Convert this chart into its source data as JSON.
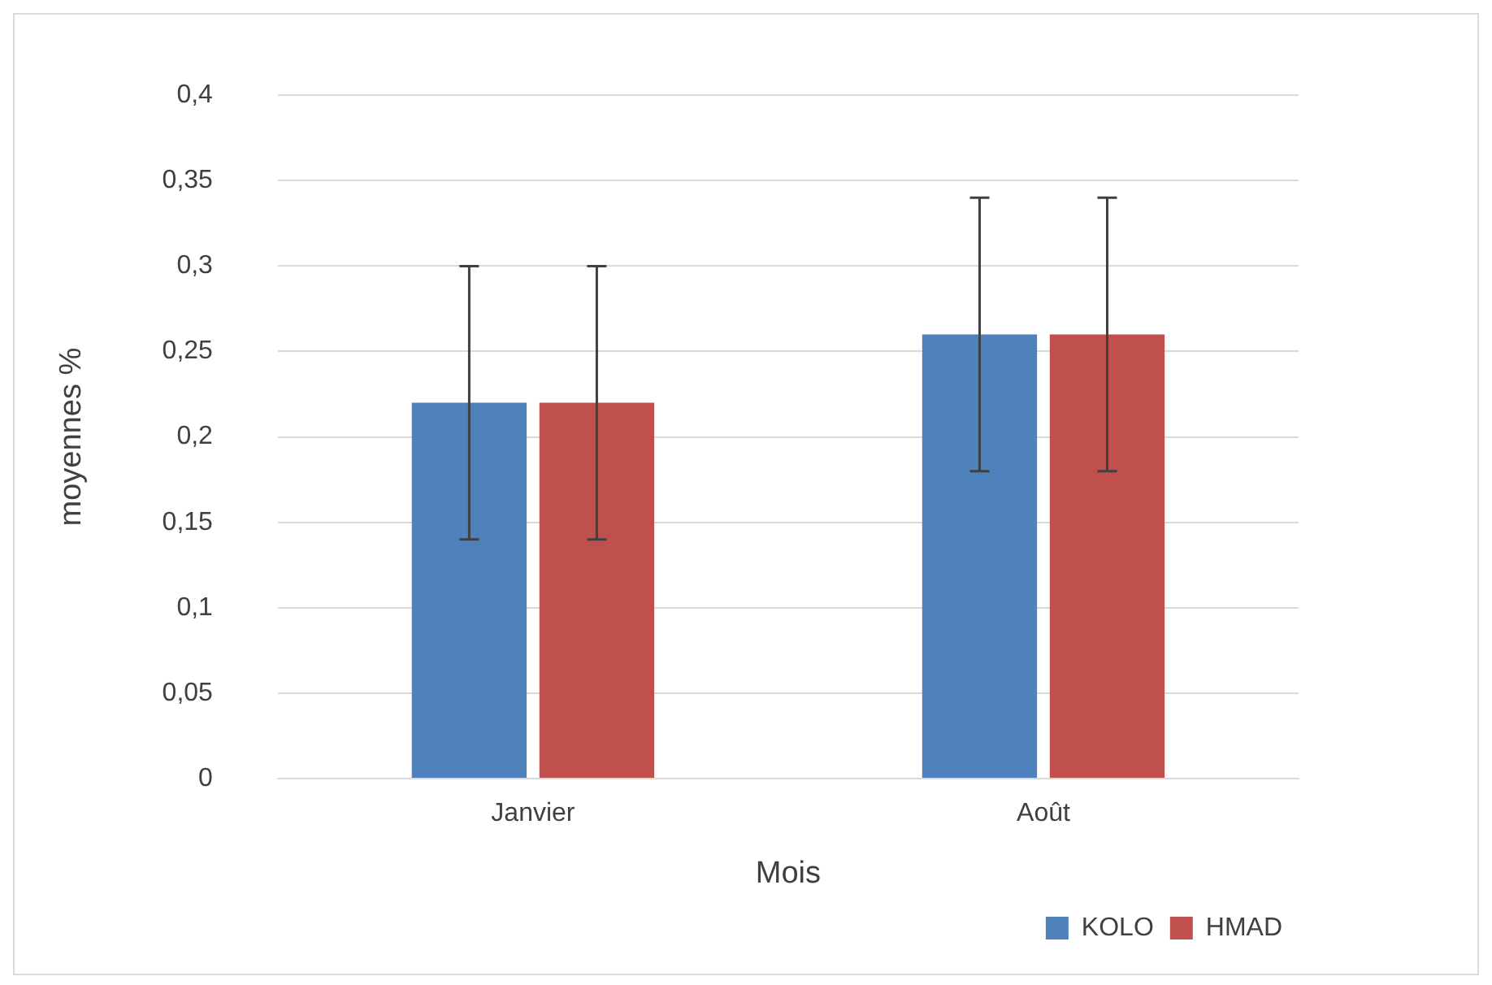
{
  "chart_data": {
    "type": "bar",
    "ylabel": "moyennes %",
    "xlabel": "Mois",
    "categories": [
      "Janvier",
      "Août"
    ],
    "series": [
      {
        "name": "KOLO",
        "color": "#4f81bd",
        "values": [
          0.22,
          0.26
        ],
        "errors": [
          0.08,
          0.08
        ]
      },
      {
        "name": "HMAD",
        "color": "#c0504d",
        "values": [
          0.22,
          0.26
        ],
        "errors": [
          0.08,
          0.08
        ]
      }
    ],
    "ylim": [
      0,
      0.4
    ],
    "yticks": [
      0,
      {
        "value": 0.05,
        "label": "0,05"
      },
      {
        "value": 0.1,
        "label": "0,1"
      },
      {
        "value": 0.15,
        "label": "0,15"
      },
      {
        "value": 0.2,
        "label": "0,2"
      },
      {
        "value": 0.25,
        "label": "0,25"
      },
      {
        "value": 0.3,
        "label": "0,3"
      },
      {
        "value": 0.35,
        "label": "0,35"
      },
      {
        "value": 0.4,
        "label": "0,4"
      }
    ],
    "grid": "y",
    "legend": "bottom right"
  }
}
